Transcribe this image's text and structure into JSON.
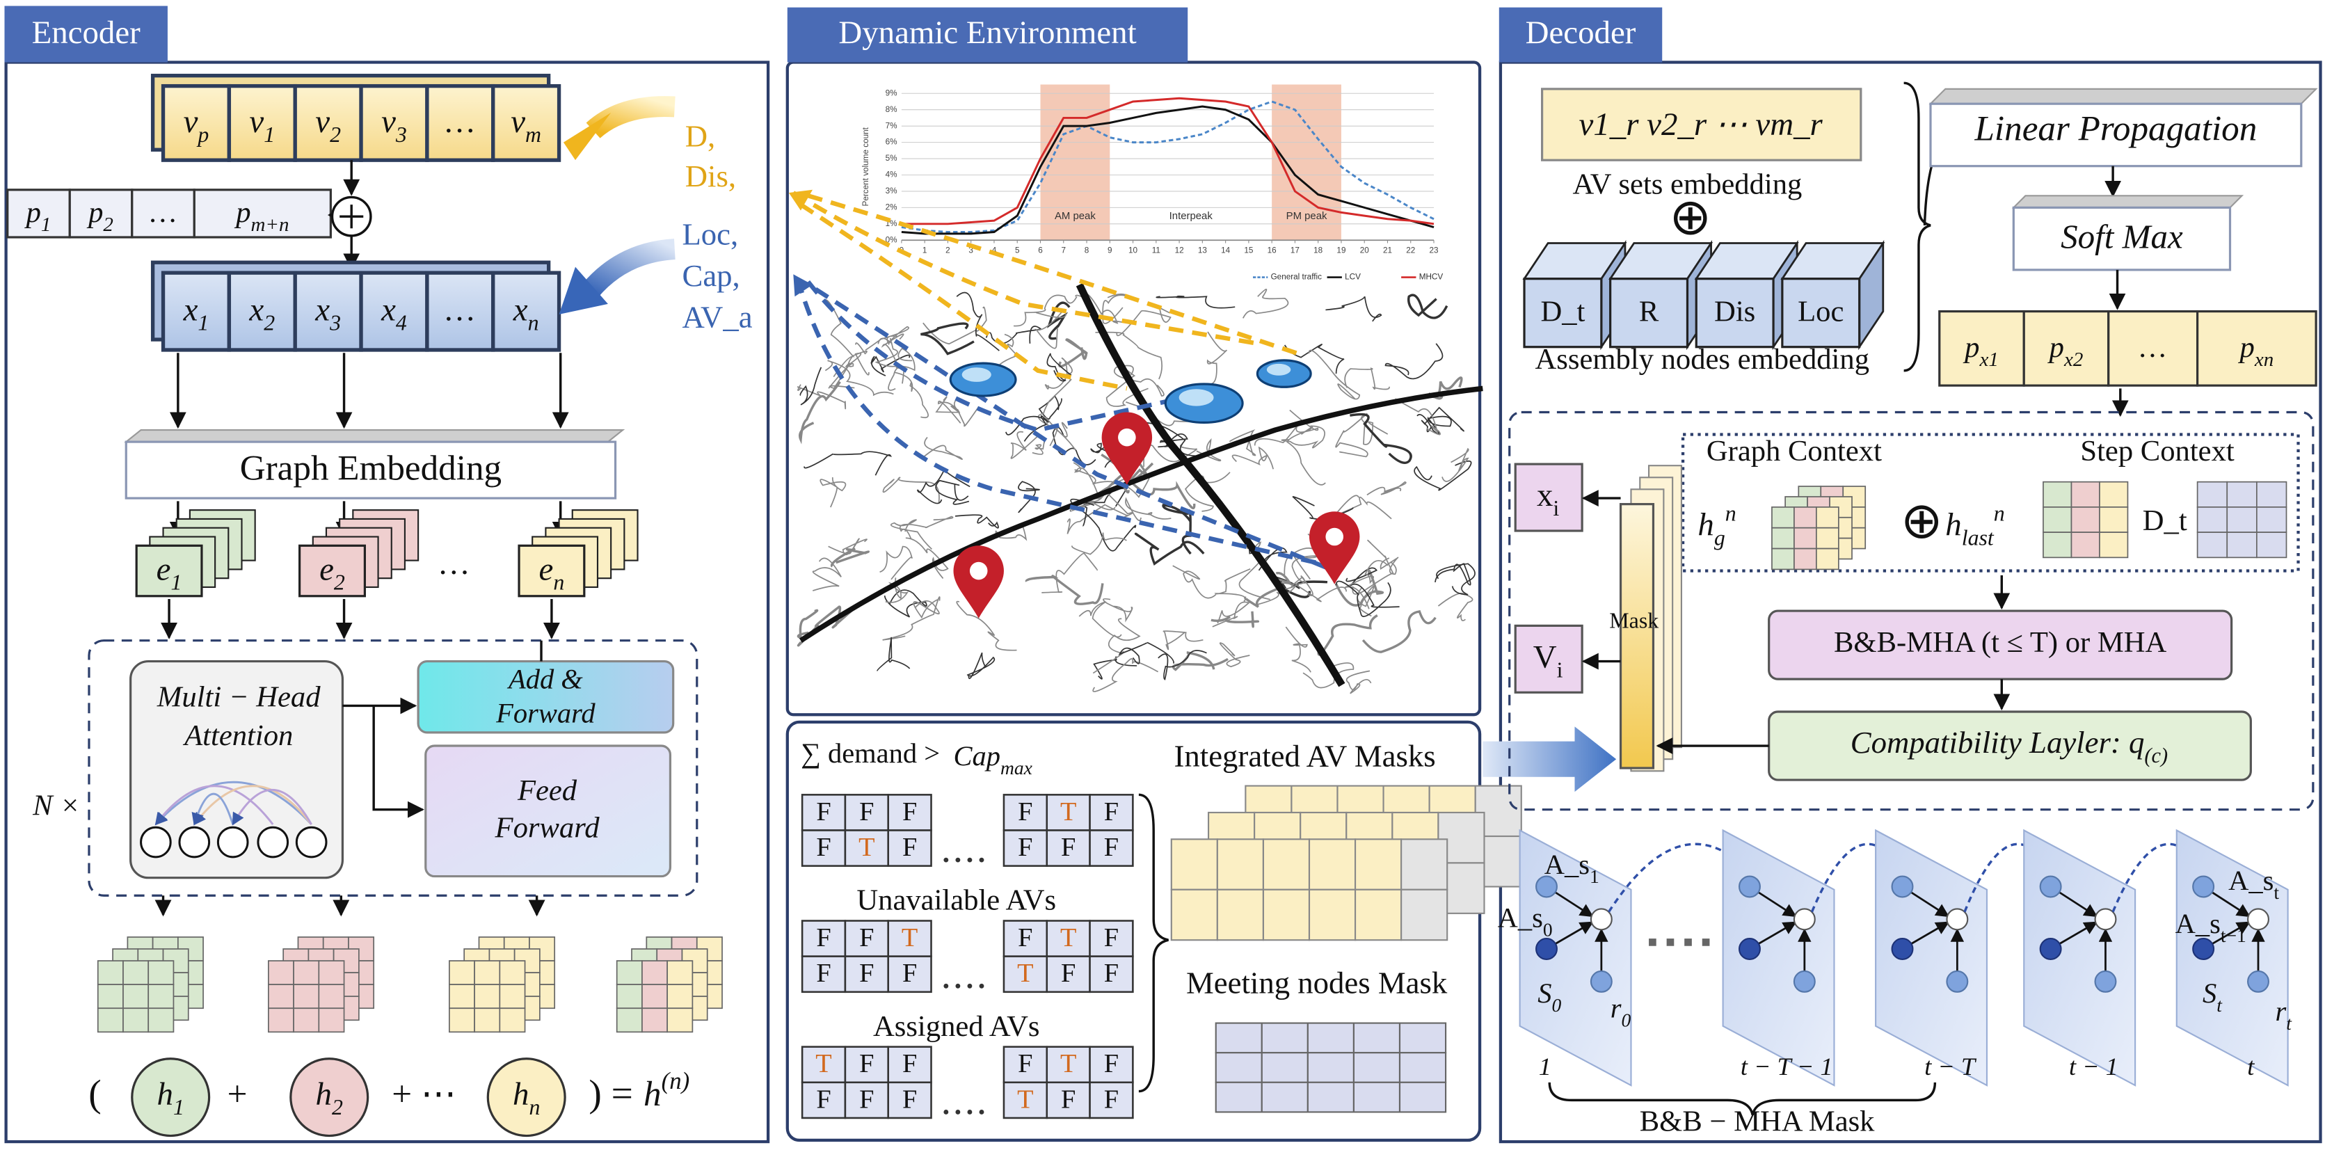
{
  "encoder": {
    "title": "Encoder",
    "v_row": [
      {
        "t": "v",
        "sub": "p"
      },
      {
        "t": "v",
        "sub": "1"
      },
      {
        "t": "v",
        "sub": "2"
      },
      {
        "t": "v",
        "sub": "3"
      },
      "…",
      {
        "t": "v",
        "sub": "m"
      }
    ],
    "p_row": [
      {
        "t": "p",
        "sub": "1"
      },
      {
        "t": "p",
        "sub": "2"
      },
      "…",
      {
        "t": "p",
        "sub": "m+n"
      }
    ],
    "x_row": [
      {
        "t": "x",
        "sub": "1"
      },
      {
        "t": "x",
        "sub": "2"
      },
      {
        "t": "x",
        "sub": "3"
      },
      {
        "t": "x",
        "sub": "4"
      },
      "…",
      {
        "t": "x",
        "sub": "n"
      }
    ],
    "static_inputs": [
      "D,",
      "Dis,"
    ],
    "dynamic_inputs": [
      "Loc,",
      "Cap,",
      "AV_a"
    ],
    "graph_embedding": "Graph Embedding",
    "embeddings": [
      {
        "t": "e",
        "sub": "1"
      },
      {
        "t": "e",
        "sub": "2"
      },
      {
        "t": "e",
        "sub": "n"
      }
    ],
    "embeddings_ellipsis": "…",
    "mha": [
      "Multi − Head",
      "Attention"
    ],
    "add_forward": [
      "Add &",
      "Forward"
    ],
    "feed_forward": [
      "Feed",
      "Forward"
    ],
    "repeat": "N ×",
    "equation": {
      "open": "(",
      "h": [
        {
          "t": "h",
          "sub": "1"
        },
        {
          "t": "h",
          "sub": "2"
        },
        {
          "t": "h",
          "sub": "n"
        }
      ],
      "plus": [
        "+",
        "+ ⋯"
      ],
      "close": ") =",
      "result": {
        "t": "h",
        "sup": "(n)"
      }
    }
  },
  "environment": {
    "title": "Dynamic Environment",
    "profile": {
      "ylabel": "Percent volume count",
      "ylim": [
        0,
        9
      ],
      "yticks": [
        {
          "value": 0,
          "label": "0%"
        },
        {
          "value": 1,
          "label": "1%"
        },
        {
          "value": 2,
          "label": "2%"
        },
        {
          "value": 3,
          "label": "3%"
        },
        {
          "value": 4,
          "label": "4%"
        },
        {
          "value": 5,
          "label": "5%"
        },
        {
          "value": 6,
          "label": "6%"
        },
        {
          "value": 7,
          "label": "7%"
        },
        {
          "value": 8,
          "label": "8%"
        },
        {
          "value": 9,
          "label": "9%"
        }
      ],
      "xlim": [
        0,
        23
      ],
      "xticks": [
        0,
        1,
        2,
        3,
        4,
        5,
        6,
        7,
        8,
        9,
        10,
        11,
        12,
        13,
        14,
        15,
        16,
        17,
        18,
        19,
        20,
        21,
        22,
        23
      ],
      "x": [
        0,
        1,
        2,
        3,
        4,
        5,
        6,
        7,
        8,
        9,
        10,
        11,
        12,
        13,
        14,
        15,
        16,
        17,
        18,
        19,
        20,
        21,
        22,
        23
      ],
      "bands": [
        {
          "label": "AM peak",
          "x": [
            6,
            9
          ]
        },
        {
          "label": "PM peak",
          "x": [
            16,
            19
          ]
        }
      ],
      "interpeak": "Interpeak",
      "series": [
        {
          "name": "General traffic",
          "color": "#4a86c8",
          "dash": true,
          "values": [
            0.8,
            0.6,
            0.5,
            0.5,
            0.6,
            1.2,
            3.5,
            6.5,
            7.0,
            6.3,
            6.0,
            6.0,
            6.2,
            6.5,
            7.2,
            8.0,
            8.5,
            8.0,
            6.2,
            4.5,
            3.5,
            2.8,
            2.0,
            1.3
          ]
        },
        {
          "name": "LCV",
          "color": "#111111",
          "dash": false,
          "values": [
            0.5,
            0.4,
            0.4,
            0.4,
            0.5,
            1.5,
            4.5,
            7.0,
            7.0,
            7.2,
            7.5,
            7.8,
            8.0,
            8.2,
            8.0,
            7.4,
            6.0,
            4.0,
            2.8,
            2.4,
            2.0,
            1.6,
            1.2,
            0.8
          ]
        },
        {
          "name": "MHCV",
          "color": "#d42a2a",
          "dash": false,
          "values": [
            1.0,
            1.0,
            1.0,
            1.1,
            1.2,
            2.0,
            5.0,
            7.5,
            7.5,
            8.0,
            8.5,
            8.6,
            8.7,
            8.6,
            8.5,
            8.2,
            6.0,
            3.0,
            2.0,
            1.7,
            1.5,
            1.3,
            1.2,
            1.0
          ]
        }
      ]
    }
  },
  "masks": {
    "condition": "∑ demand >",
    "cap": {
      "t": "Cap",
      "sub": "max"
    },
    "groups": [
      {
        "left": [
          [
            "F",
            "F",
            "F"
          ],
          [
            "F",
            "T",
            "F"
          ]
        ],
        "right": [
          [
            "F",
            "T",
            "F"
          ],
          [
            "F",
            "F",
            "F"
          ]
        ]
      },
      {
        "label": "Unavailable AVs",
        "left": [
          [
            "F",
            "F",
            "T"
          ],
          [
            "F",
            "F",
            "F"
          ]
        ],
        "right": [
          [
            "F",
            "T",
            "F"
          ],
          [
            "T",
            "F",
            "F"
          ]
        ]
      },
      {
        "label": "Assigned AVs",
        "left": [
          [
            "T",
            "F",
            "F"
          ],
          [
            "F",
            "F",
            "F"
          ]
        ],
        "right": [
          [
            "F",
            "T",
            "F"
          ],
          [
            "T",
            "F",
            "F"
          ]
        ]
      }
    ],
    "integrated": "Integrated AV Masks",
    "meeting": "Meeting nodes Mask"
  },
  "decoder": {
    "title": "Decoder",
    "av_sets": "v1_r v2_r ⋯ vm_r",
    "av_sets_caption": "AV sets embedding",
    "oplus": "⊕",
    "nodes": [
      "D_t",
      "R",
      "Dis",
      "Loc"
    ],
    "nodes_caption": "Assembly nodes embedding",
    "linear": "Linear Propagation",
    "softmax": "Soft Max",
    "probs": [
      {
        "t": "p",
        "sub": "x1"
      },
      {
        "t": "p",
        "sub": "x2"
      },
      "…",
      {
        "t": "p",
        "sub": "xn"
      }
    ],
    "graph_context": "Graph Context",
    "step_context": "Step Context",
    "hg": {
      "t": "h",
      "sub": "g",
      "sup": "n"
    },
    "context_oplus": "⊕",
    "hlast": {
      "t": "h",
      "sub": "last",
      "sup": "n"
    },
    "step_dt": "D_t",
    "xi": {
      "t": "x",
      "sub": "i"
    },
    "vi": {
      "t": "V",
      "sub": "i"
    },
    "mask": "Mask",
    "mha": "B&B-MHA (t ≤ T) or MHA",
    "compat": {
      "t": "Compatibility Layler: q",
      "sub": "(c)"
    },
    "graph_labels": [
      {
        "t": "A_s",
        "sub": "1"
      },
      {
        "t": "A_s",
        "sub": "0"
      },
      {
        "t": "S",
        "sub": "0"
      },
      {
        "t": "r",
        "sub": "0"
      },
      {
        "t": "A_s",
        "sub": "t"
      },
      {
        "t": "A_s",
        "sub": "t−1"
      },
      {
        "t": "S",
        "sub": "t"
      },
      {
        "t": "r",
        "sub": "t"
      }
    ],
    "timeline": [
      "1",
      "t − T − 1",
      "t − T",
      "t − 1",
      "t"
    ],
    "timeline_caption": "B&B − MHA Mask"
  }
}
